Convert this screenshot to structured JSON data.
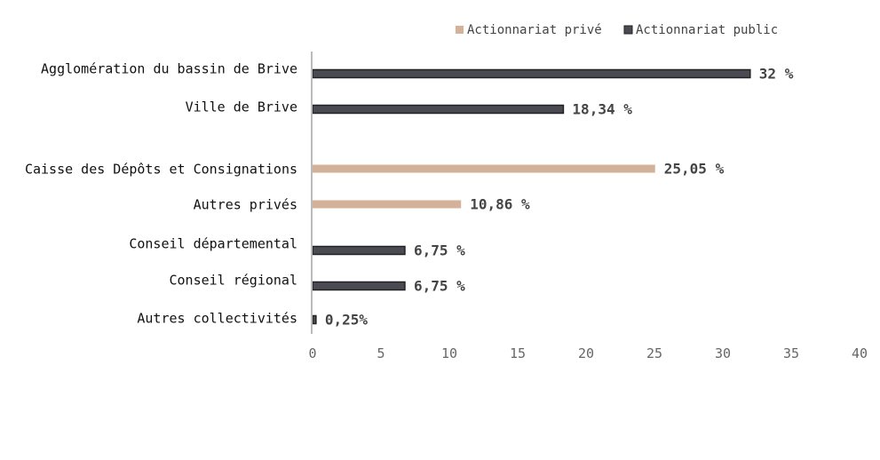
{
  "colors": {
    "prive": "#d4b29a",
    "public": "#4a4a52",
    "public_stroke": "#222222",
    "axis": "#bbbbbb"
  },
  "chart_data": {
    "type": "bar",
    "orientation": "horizontal",
    "title": "",
    "xlabel": "",
    "ylabel": "",
    "xlim": [
      0,
      40
    ],
    "xticks": [
      0,
      5,
      10,
      15,
      20,
      25,
      30,
      35,
      40
    ],
    "xtick_labels": [
      "0",
      "5",
      "10",
      "15",
      "20",
      "25",
      "30",
      "35",
      "40"
    ],
    "grid": false,
    "legend_position": "top-right",
    "legend": [
      {
        "name": "Actionnariat privé",
        "color_key": "prive"
      },
      {
        "name": "Actionnariat public",
        "color_key": "public"
      }
    ],
    "bars": [
      {
        "category": "Agglomération du bassin de Brive",
        "value": 32,
        "series": "Actionnariat public",
        "label": "32 %"
      },
      {
        "category": "Ville de Brive",
        "value": 18.34,
        "series": "Actionnariat public",
        "label": "18,34 %"
      },
      {
        "category": "Caisse des Dépôts et Consignations",
        "value": 25.05,
        "series": "Actionnariat privé",
        "label": "25,05 %"
      },
      {
        "category": "Autres privés",
        "value": 10.86,
        "series": "Actionnariat privé",
        "label": "10,86 %"
      },
      {
        "category": "Conseil départemental",
        "value": 6.75,
        "series": "Actionnariat public",
        "label": "6,75 %"
      },
      {
        "category": "Conseil régional",
        "value": 6.75,
        "series": "Actionnariat public",
        "label": "6,75 %"
      },
      {
        "category": "Autres collectivités",
        "value": 0.25,
        "series": "Actionnariat public",
        "label": "0,25%"
      }
    ]
  }
}
